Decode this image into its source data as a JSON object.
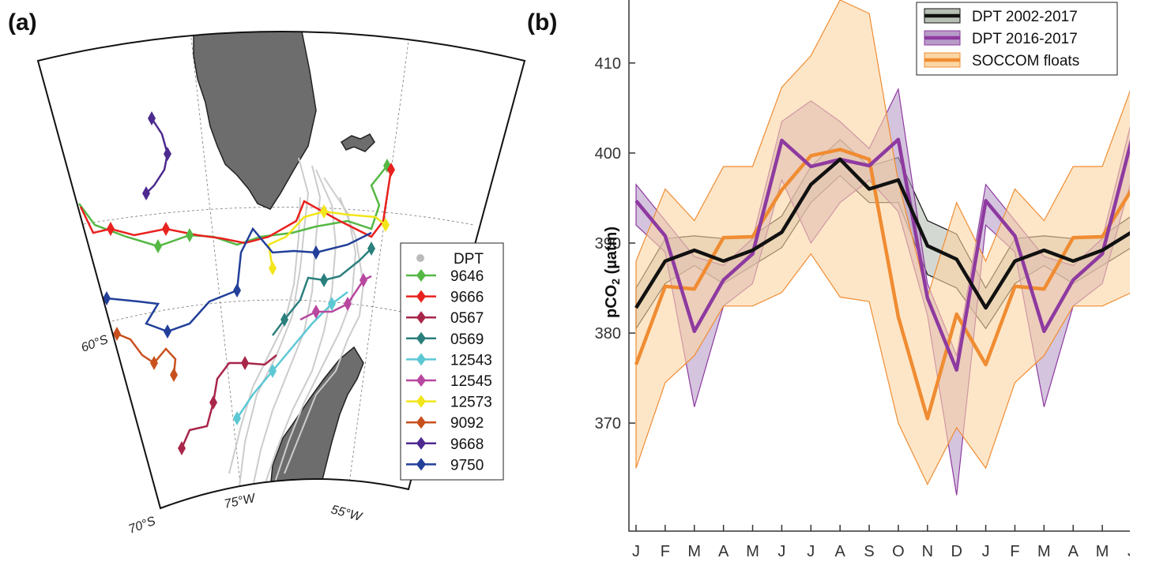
{
  "panel_a": {
    "label": "(a)",
    "legend_title": "DPT",
    "lat_labels": [
      "60°S",
      "70°S"
    ],
    "lon_labels": [
      "75°W",
      "55°W"
    ],
    "floats": [
      {
        "id": "9646",
        "color": "#55b844"
      },
      {
        "id": "9666",
        "color": "#e8221f"
      },
      {
        "id": "0567",
        "color": "#a8264a"
      },
      {
        "id": "0569",
        "color": "#2a7f7c"
      },
      {
        "id": "12543",
        "color": "#5cc8d4"
      },
      {
        "id": "12545",
        "color": "#b8479f"
      },
      {
        "id": "12573",
        "color": "#f2e51a"
      },
      {
        "id": "9092",
        "color": "#c8501e"
      },
      {
        "id": "9668",
        "color": "#4d2a8f"
      },
      {
        "id": "9750",
        "color": "#223f99"
      }
    ]
  },
  "panel_b": {
    "label": "(b)"
  },
  "chart_data": {
    "type": "line",
    "ylabel": "pCO2 (µatm)",
    "ylim": [
      358,
      417
    ],
    "yticks": [
      370,
      380,
      390,
      400,
      410
    ],
    "categories": [
      "J",
      "F",
      "M",
      "A",
      "M",
      "J",
      "J",
      "A",
      "S",
      "O",
      "N",
      "D",
      "J",
      "F",
      "M",
      "A",
      "M",
      "J"
    ],
    "legend_position": "top-right",
    "series": [
      {
        "name": "DPT 2002-2017",
        "color": "#111111",
        "fill": "#b8beb4",
        "values": [
          382.8,
          388.0,
          389.2,
          388.0,
          389.2,
          391.2,
          396.5,
          399.3,
          396.0,
          397.0,
          389.7,
          388.2,
          382.8,
          388.0,
          389.2,
          388.0,
          389.2,
          391.2
        ],
        "upper": [
          385.0,
          390.5,
          390.8,
          390.5,
          390.8,
          393.0,
          398.5,
          401.5,
          398.5,
          399.5,
          392.5,
          391.0,
          385.0,
          390.5,
          390.8,
          390.5,
          390.8,
          393.0
        ],
        "lower": [
          380.5,
          385.5,
          387.5,
          385.5,
          387.5,
          389.5,
          394.5,
          397.5,
          394.5,
          394.5,
          386.5,
          385.0,
          380.5,
          385.5,
          387.5,
          385.5,
          387.5,
          389.5
        ]
      },
      {
        "name": "DPT 2016-2017",
        "color": "#8e3aa0",
        "fill": "#b79cc8",
        "values": [
          394.7,
          390.8,
          380.2,
          385.9,
          388.8,
          401.4,
          398.5,
          399.3,
          398.6,
          401.5,
          383.9,
          375.9,
          394.7,
          390.8,
          380.2,
          385.9,
          388.8,
          401.4
        ],
        "upper": [
          396.5,
          392.5,
          388.5,
          387.5,
          390.5,
          403.5,
          405.8,
          403.5,
          400.5,
          407.1,
          385.5,
          377.5,
          396.5,
          392.5,
          388.5,
          387.5,
          390.5,
          403.5
        ],
        "lower": [
          392.0,
          389.0,
          371.8,
          383.0,
          385.5,
          397.0,
          390.0,
          394.5,
          397.0,
          393.5,
          382.0,
          362.0,
          392.0,
          389.0,
          371.8,
          383.0,
          385.5,
          397.0
        ]
      },
      {
        "name": "SOCCOM floats",
        "color": "#f08c32",
        "fill": "#fbd6a4",
        "values": [
          376.5,
          385.2,
          384.9,
          390.6,
          390.7,
          395.9,
          399.7,
          400.4,
          399.3,
          381.8,
          370.5,
          382.1,
          376.5,
          385.2,
          384.9,
          390.6,
          390.7,
          395.9
        ],
        "upper": [
          388.0,
          396.0,
          392.5,
          398.5,
          398.5,
          407.3,
          410.8,
          417.0,
          415.5,
          396.8,
          384.0,
          394.5,
          388.0,
          396.0,
          392.5,
          398.5,
          398.5,
          407.3
        ],
        "lower": [
          365.0,
          374.5,
          377.5,
          383.0,
          383.0,
          384.5,
          388.8,
          384.0,
          383.5,
          370.0,
          363.2,
          369.5,
          365.0,
          374.5,
          377.5,
          383.0,
          383.0,
          384.5
        ]
      }
    ]
  }
}
